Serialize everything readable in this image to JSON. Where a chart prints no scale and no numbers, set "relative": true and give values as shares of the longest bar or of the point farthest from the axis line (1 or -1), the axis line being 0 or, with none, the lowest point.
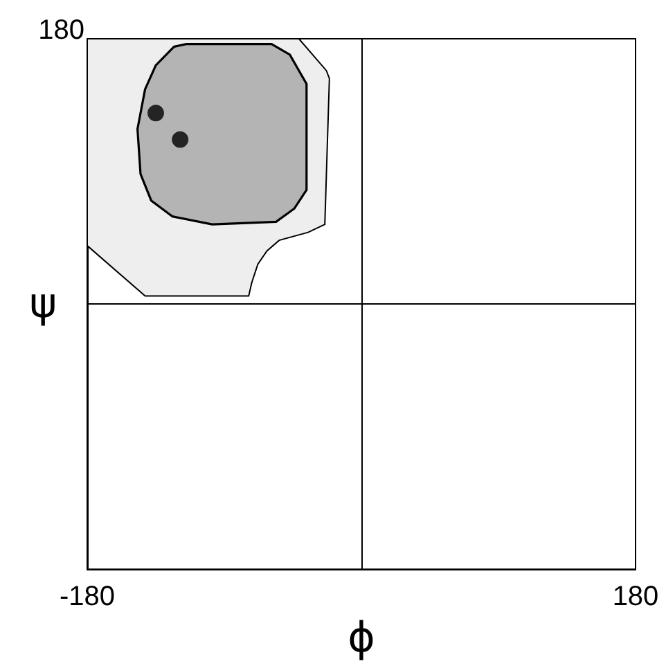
{
  "chart_data": {
    "type": "scatter",
    "xlabel": "ϕ",
    "ylabel": "ψ",
    "xlim": [
      -180,
      180
    ],
    "xticks": [
      -180,
      180
    ],
    "relative": true,
    "annotations": [
      "180"
    ],
    "grid": false,
    "series": [
      {
        "type": "area",
        "color": "#eeeeee",
        "x": [
          -180,
          -41,
          -23,
          -21,
          -24,
          -35,
          -54,
          -62,
          -68,
          -72,
          -74,
          -142,
          -180
        ],
        "values": [
          1,
          1,
          0.88,
          0.85,
          0.3,
          0.27,
          0.24,
          0.2,
          0.15,
          0.08,
          0.03,
          0.03,
          0.22
        ]
      },
      {
        "type": "area",
        "color": "#b4b4b4",
        "x": [
          -142,
          -135,
          -123,
          -115,
          -59,
          -47,
          -41,
          -36,
          -36,
          -44,
          -56,
          -98,
          -124,
          -138,
          -145,
          -147
        ],
        "values": [
          0.81,
          0.9,
          0.97,
          0.98,
          0.98,
          0.94,
          0.88,
          0.83,
          0.43,
          0.36,
          0.31,
          0.3,
          0.33,
          0.39,
          0.49,
          0.66
        ]
      },
      {
        "color": "#000000",
        "marker": "circle",
        "x": [
          -135,
          -119
        ],
        "values": [
          0.72,
          0.62
        ]
      }
    ]
  }
}
